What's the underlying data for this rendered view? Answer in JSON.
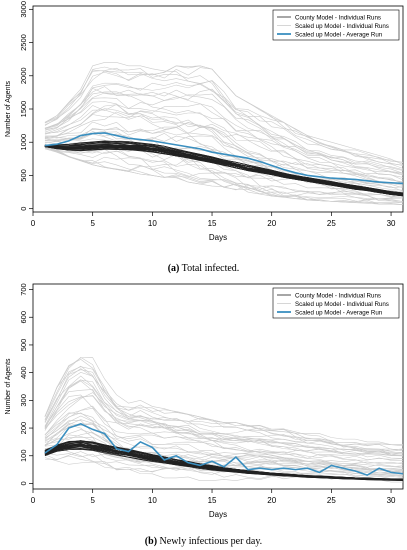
{
  "chart_data": [
    {
      "type": "line",
      "xlabel": "Days",
      "ylabel": "Number of Agents",
      "xlim": [
        0,
        31
      ],
      "ylim": [
        -50,
        3050
      ],
      "xticks": [
        0,
        5,
        10,
        15,
        20,
        25,
        30
      ],
      "yticks": [
        0,
        500,
        1000,
        1500,
        2000,
        2500,
        3000
      ],
      "legend_placement": "top-right",
      "legend": {
        "county": "County Model - Individual Runs",
        "scaled": "Scaled up Model - Individual Runs",
        "average": "Scaled up Model - Average Run"
      },
      "colors": {
        "county": "#222222",
        "scaled": "#cccccc",
        "average": "#3a8fc0"
      },
      "caption_tag": "(a)",
      "caption_text": " Total infected.",
      "county_band": {
        "x": [
          1,
          2,
          3,
          4,
          5,
          6,
          7,
          8,
          9,
          10,
          11,
          12,
          13,
          14,
          15,
          16,
          17,
          18,
          19,
          20,
          21,
          22,
          23,
          24,
          25,
          26,
          27,
          28,
          29,
          30,
          31
        ],
        "low": [
          930,
          900,
          880,
          870,
          880,
          890,
          890,
          880,
          870,
          850,
          820,
          790,
          760,
          720,
          690,
          650,
          610,
          570,
          540,
          510,
          470,
          440,
          410,
          380,
          350,
          320,
          290,
          270,
          240,
          210,
          190
        ],
        "high": [
          960,
          960,
          970,
          990,
          1010,
          1020,
          1020,
          1010,
          990,
          970,
          940,
          900,
          860,
          820,
          780,
          740,
          700,
          660,
          620,
          580,
          540,
          500,
          470,
          440,
          410,
          380,
          350,
          320,
          290,
          260,
          240
        ]
      },
      "scaled_envelope": {
        "low": [
          900,
          850,
          780,
          720,
          660,
          620,
          590,
          560,
          520,
          500,
          470,
          440,
          400,
          370,
          340,
          300,
          280,
          250,
          220,
          190,
          170,
          150,
          130,
          120,
          110,
          100,
          90,
          80,
          70,
          70,
          60
        ],
        "high": [
          1300,
          1400,
          1600,
          1800,
          2150,
          2200,
          2200,
          2150,
          2150,
          2150,
          2150,
          2150,
          2150,
          2150,
          2100,
          1900,
          1700,
          1600,
          1500,
          1400,
          1300,
          1200,
          1100,
          1050,
          1000,
          950,
          900,
          850,
          800,
          750,
          700
        ]
      },
      "series": [
        {
          "name": "Scaled up Model - Average Run",
          "x": [
            1,
            2,
            3,
            4,
            5,
            6,
            7,
            8,
            9,
            10,
            11,
            12,
            13,
            14,
            15,
            16,
            17,
            18,
            19,
            20,
            21,
            22,
            23,
            24,
            25,
            26,
            27,
            28,
            29,
            30,
            31
          ],
          "y": [
            950,
            970,
            1020,
            1100,
            1130,
            1140,
            1100,
            1060,
            1040,
            1020,
            990,
            960,
            930,
            900,
            850,
            820,
            790,
            760,
            710,
            650,
            590,
            540,
            500,
            480,
            460,
            450,
            440,
            420,
            400,
            390,
            380
          ]
        }
      ]
    },
    {
      "type": "line",
      "xlabel": "Days",
      "ylabel": "Number of Agents",
      "xlim": [
        0,
        31
      ],
      "ylim": [
        -20,
        720
      ],
      "xticks": [
        0,
        5,
        10,
        15,
        20,
        25,
        30
      ],
      "yticks": [
        0,
        100,
        200,
        300,
        400,
        500,
        600,
        700
      ],
      "legend_placement": "top-right",
      "legend": {
        "county": "County Model - Individual Runs",
        "scaled": "Scaled up Model - Individual Runs",
        "average": "Scaled up Model - Average Run"
      },
      "colors": {
        "county": "#222222",
        "scaled": "#cccccc",
        "average": "#3a8fc0"
      },
      "caption_tag": "(b)",
      "caption_text": " Newly infectious per day.",
      "county_band": {
        "x": [
          1,
          2,
          3,
          4,
          5,
          6,
          7,
          8,
          9,
          10,
          11,
          12,
          13,
          14,
          15,
          16,
          17,
          18,
          19,
          20,
          21,
          22,
          23,
          24,
          25,
          26,
          27,
          28,
          29,
          30,
          31
        ],
        "low": [
          100,
          115,
          122,
          123,
          118,
          110,
          102,
          94,
          86,
          79,
          72,
          65,
          59,
          54,
          48,
          44,
          40,
          36,
          33,
          30,
          27,
          25,
          22,
          20,
          18,
          16,
          15,
          13,
          12,
          11,
          10
        ],
        "high": [
          120,
          140,
          152,
          156,
          150,
          142,
          133,
          124,
          115,
          106,
          97,
          88,
          80,
          72,
          65,
          58,
          52,
          47,
          42,
          38,
          35,
          32,
          29,
          27,
          25,
          23,
          21,
          20,
          18,
          17,
          16
        ]
      },
      "scaled_envelope": {
        "low": [
          80,
          60,
          50,
          40,
          40,
          30,
          30,
          30,
          20,
          20,
          20,
          20,
          20,
          10,
          10,
          10,
          10,
          10,
          10,
          10,
          5,
          5,
          5,
          5,
          5,
          5,
          5,
          5,
          5,
          5,
          5
        ],
        "high": [
          250,
          350,
          440,
          480,
          460,
          380,
          320,
          290,
          300,
          280,
          270,
          260,
          250,
          240,
          230,
          220,
          220,
          210,
          210,
          200,
          200,
          190,
          180,
          180,
          170,
          160,
          160,
          150,
          150,
          140,
          140
        ]
      },
      "series": [
        {
          "name": "Scaled up Model - Average Run",
          "x": [
            1,
            2,
            3,
            4,
            5,
            6,
            7,
            8,
            9,
            10,
            11,
            12,
            13,
            14,
            15,
            16,
            17,
            18,
            19,
            20,
            21,
            22,
            23,
            24,
            25,
            26,
            27,
            28,
            29,
            30,
            31
          ],
          "y": [
            110,
            140,
            200,
            215,
            195,
            180,
            125,
            115,
            150,
            130,
            85,
            100,
            75,
            65,
            80,
            60,
            95,
            50,
            55,
            50,
            55,
            50,
            55,
            40,
            65,
            55,
            45,
            30,
            55,
            40,
            35
          ]
        }
      ]
    }
  ]
}
